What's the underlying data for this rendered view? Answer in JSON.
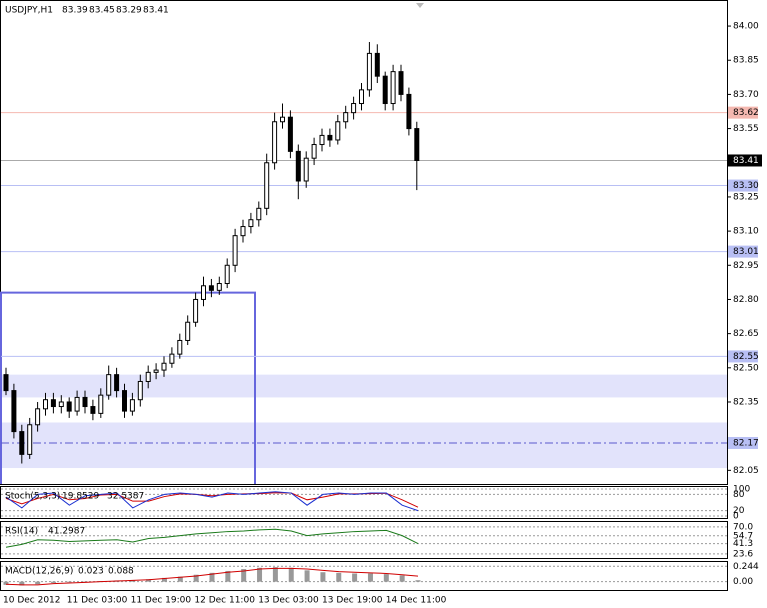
{
  "chart_data": {
    "type": "candlestick",
    "title": "USDJPY,H1",
    "quote": [
      83.39,
      83.45,
      83.29,
      83.41
    ],
    "open": [
      82.47,
      82.4,
      82.22,
      82.12,
      82.25,
      82.32,
      82.36,
      82.33,
      82.35,
      82.31,
      82.37,
      82.33,
      82.3,
      82.38,
      82.47,
      82.4,
      82.31,
      82.36,
      82.44,
      82.48,
      82.49,
      82.52,
      82.56,
      82.62,
      82.7,
      82.8,
      82.86,
      82.84,
      82.87,
      82.95,
      83.08,
      83.12,
      83.15,
      83.2,
      83.4,
      83.58,
      83.6,
      83.45,
      83.32,
      83.42,
      83.48,
      83.52,
      83.5,
      83.58,
      83.62,
      83.66,
      83.72,
      83.88,
      83.78,
      83.66,
      83.8,
      83.7,
      83.55
    ],
    "high": [
      82.5,
      82.43,
      82.25,
      82.28,
      82.35,
      82.39,
      82.39,
      82.38,
      82.37,
      82.4,
      82.4,
      82.36,
      82.41,
      82.51,
      82.5,
      82.43,
      82.39,
      82.47,
      82.51,
      82.52,
      82.55,
      82.59,
      82.65,
      82.73,
      82.83,
      82.9,
      82.89,
      82.9,
      82.98,
      83.11,
      83.15,
      83.18,
      83.23,
      83.44,
      83.62,
      83.66,
      83.63,
      83.48,
      83.45,
      83.51,
      83.55,
      83.55,
      83.61,
      83.65,
      83.69,
      83.75,
      83.93,
      83.92,
      83.8,
      83.83,
      83.83,
      83.73,
      83.58
    ],
    "low": [
      82.38,
      82.19,
      82.08,
      82.1,
      82.22,
      82.29,
      82.3,
      82.3,
      82.28,
      82.29,
      82.3,
      82.27,
      82.28,
      82.36,
      82.37,
      82.28,
      82.29,
      82.33,
      82.41,
      82.45,
      82.46,
      82.5,
      82.54,
      82.6,
      82.68,
      82.77,
      82.81,
      82.82,
      82.85,
      82.92,
      83.05,
      83.09,
      83.12,
      83.17,
      83.37,
      83.55,
      83.42,
      83.24,
      83.29,
      83.39,
      83.45,
      83.47,
      83.48,
      83.55,
      83.59,
      83.63,
      83.69,
      83.75,
      83.63,
      83.63,
      83.67,
      83.52,
      83.28
    ],
    "close": [
      82.4,
      82.22,
      82.12,
      82.25,
      82.32,
      82.36,
      82.33,
      82.35,
      82.31,
      82.37,
      82.33,
      82.3,
      82.38,
      82.47,
      82.4,
      82.31,
      82.36,
      82.44,
      82.48,
      82.49,
      82.52,
      82.56,
      82.62,
      82.7,
      82.8,
      82.86,
      82.84,
      82.87,
      82.95,
      83.08,
      83.12,
      83.15,
      83.2,
      83.4,
      83.58,
      83.6,
      83.45,
      83.32,
      83.42,
      83.48,
      83.52,
      83.5,
      83.58,
      83.62,
      83.66,
      83.72,
      83.88,
      83.78,
      83.66,
      83.8,
      83.7,
      83.55,
      83.41
    ],
    "ylim": [
      81.99,
      84.11
    ],
    "yticks": [
      {
        "value": 84,
        "label": "84.00"
      },
      83.85,
      {
        "value": 83.7,
        "label": "83.70"
      },
      83.55,
      83.25,
      {
        "value": 83.1,
        "label": "83.10"
      },
      82.95,
      {
        "value": 82.8,
        "label": "82.80"
      },
      82.65,
      {
        "value": 82.5,
        "label": "82.50"
      },
      82.35,
      82.05
    ],
    "x_labels": [
      "10 Dec 2012",
      "11 Dec 03:00",
      "11 Dec 19:00",
      "12 Dec 11:00",
      "13 Dec 03:00",
      "13 Dec 19:00",
      "14 Dec 11:00"
    ],
    "current_price": 83.41,
    "levels": [
      {
        "value": 83.62,
        "color": "#f4b8b0"
      },
      {
        "value": 83.3,
        "label": "83.30",
        "color": "#b8bff4"
      },
      {
        "value": 83.01,
        "color": "#b8bff4"
      },
      {
        "value": 82.55,
        "color": "#b8bff4"
      },
      {
        "value": 82.17,
        "color": "#b8bff4"
      }
    ],
    "bands": [
      {
        "from": 82.37,
        "to": 82.47
      },
      {
        "from": 82.06,
        "to": 82.26
      }
    ],
    "box_top": 82.83,
    "stoch": {
      "title": "Stoch(5,3,3)",
      "current": [
        19.8529,
        32.5387
      ],
      "ylim": [
        0,
        100
      ],
      "yticks": [
        100,
        80,
        20,
        0
      ],
      "main": [
        70,
        30,
        80,
        85,
        40,
        75,
        80,
        85,
        30,
        60,
        80,
        85,
        80,
        70,
        85,
        80,
        85,
        90,
        85,
        40,
        80,
        85,
        80,
        85,
        85,
        40,
        19.85
      ],
      "signal": [
        65,
        45,
        65,
        80,
        60,
        65,
        78,
        80,
        55,
        55,
        72,
        82,
        80,
        75,
        80,
        82,
        83,
        86,
        85,
        60,
        70,
        82,
        82,
        83,
        84,
        60,
        32.54
      ]
    },
    "rsi": {
      "title": "RSI(14)",
      "current": 41.2987,
      "ylim": [
        20,
        75
      ],
      "yticks": [
        {
          "value": 70,
          "label": "70.0"
        },
        54.7,
        41.3,
        23.6
      ],
      "values": [
        35,
        40,
        48,
        47,
        45,
        46,
        47,
        48,
        44,
        50,
        52,
        55,
        58,
        60,
        62,
        63,
        65,
        66,
        63,
        55,
        58,
        60,
        62,
        63,
        64,
        55,
        41.3
      ]
    },
    "macd": {
      "title": "MACD(12,26,9)",
      "current": [
        0.023,
        0.088
      ],
      "ylim": [
        -0.1,
        0.28
      ],
      "yticks": [
        0.244,
        {
          "value": 0,
          "label": "0.00"
        }
      ],
      "main": [
        -0.05,
        -0.06,
        -0.04,
        -0.02,
        -0.01,
        0.005,
        0.01,
        0.02,
        0.02,
        0.04,
        0.06,
        0.08,
        0.11,
        0.14,
        0.17,
        0.2,
        0.22,
        0.23,
        0.22,
        0.18,
        0.15,
        0.14,
        0.13,
        0.13,
        0.12,
        0.1,
        0.023
      ],
      "signal": [
        -0.04,
        -0.05,
        -0.05,
        -0.03,
        -0.02,
        -0.01,
        0.0,
        0.01,
        0.02,
        0.03,
        0.05,
        0.07,
        0.09,
        0.12,
        0.15,
        0.17,
        0.2,
        0.21,
        0.21,
        0.2,
        0.18,
        0.16,
        0.15,
        0.14,
        0.13,
        0.11,
        0.088
      ]
    }
  }
}
